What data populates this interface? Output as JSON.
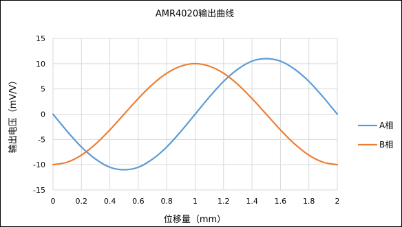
{
  "chart_data": {
    "type": "line",
    "title": "AMR4020输出曲线",
    "xlabel": "位移量（mm）",
    "ylabel": "输出电压（mV/V）",
    "xlim": [
      0,
      2
    ],
    "ylim": [
      -15,
      15
    ],
    "x_ticks": [
      "0",
      "0.2",
      "0.4",
      "0.6",
      "0.8",
      "1",
      "1.2",
      "1.4",
      "1.6",
      "1.8",
      "2"
    ],
    "y_ticks": [
      "15",
      "10",
      "5",
      "0",
      "-5",
      "-10",
      "-15"
    ],
    "grid": true,
    "legend_position": "right",
    "series": [
      {
        "name": "A相",
        "color": "#5B9BD5",
        "x": [
          0,
          0.1,
          0.2,
          0.3,
          0.4,
          0.5,
          0.6,
          0.7,
          0.8,
          0.9,
          1,
          1.1,
          1.2,
          1.3,
          1.4,
          1.5,
          1.6,
          1.7,
          1.8,
          1.9,
          2
        ],
        "y": [
          0,
          -3.4,
          -6.5,
          -8.9,
          -10.5,
          -11,
          -10.5,
          -8.9,
          -6.5,
          -3.4,
          0,
          3.4,
          6.5,
          8.9,
          10.5,
          11,
          10.5,
          8.9,
          6.5,
          3.4,
          0
        ]
      },
      {
        "name": "B相",
        "color": "#ED7D31",
        "x": [
          0,
          0.1,
          0.2,
          0.3,
          0.4,
          0.5,
          0.6,
          0.7,
          0.8,
          0.9,
          1,
          1.1,
          1.2,
          1.3,
          1.4,
          1.5,
          1.6,
          1.7,
          1.8,
          1.9,
          2
        ],
        "y": [
          -10,
          -9.5,
          -8.1,
          -5.9,
          -3.1,
          0,
          3.1,
          5.9,
          8.1,
          9.5,
          10,
          9.5,
          8.1,
          5.9,
          3.1,
          0,
          -3.1,
          -5.9,
          -8.1,
          -9.5,
          -10
        ]
      }
    ]
  }
}
